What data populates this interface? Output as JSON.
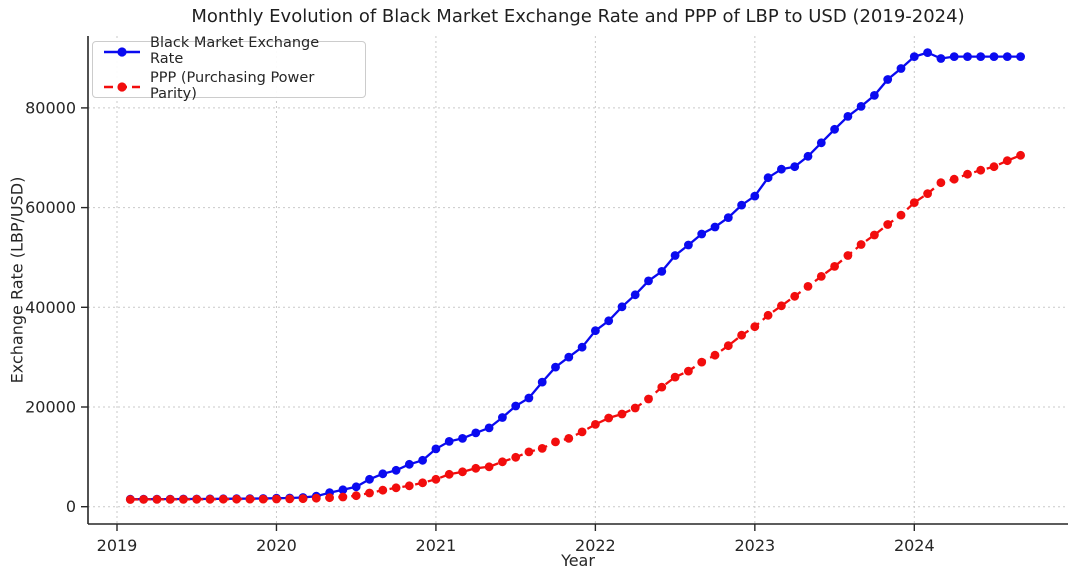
{
  "chart_data": {
    "type": "line",
    "title": "Monthly Evolution of Black Market Exchange Rate and PPP of LBP to USD (2019-2024)",
    "xlabel": "Year",
    "ylabel": "Exchange Rate (LBP/USD)",
    "x_tick_labels": [
      "2019",
      "2020",
      "2021",
      "2022",
      "2023",
      "2024"
    ],
    "y_tick_labels": [
      "0",
      "20000",
      "40000",
      "60000",
      "80000"
    ],
    "ylim": [
      -3400,
      95000
    ],
    "xlim_years": [
      2018.82,
      2024.96
    ],
    "grid": "dashed light-gray, horizontal and vertical",
    "legend_position": "upper left",
    "frequency": "monthly",
    "x": [
      "2019-01",
      "2019-02",
      "2019-03",
      "2019-04",
      "2019-05",
      "2019-06",
      "2019-07",
      "2019-08",
      "2019-09",
      "2019-10",
      "2019-11",
      "2019-12",
      "2020-01",
      "2020-02",
      "2020-03",
      "2020-04",
      "2020-05",
      "2020-06",
      "2020-07",
      "2020-08",
      "2020-09",
      "2020-10",
      "2020-11",
      "2020-12",
      "2021-01",
      "2021-02",
      "2021-03",
      "2021-04",
      "2021-05",
      "2021-06",
      "2021-07",
      "2021-08",
      "2021-09",
      "2021-10",
      "2021-11",
      "2021-12",
      "2022-01",
      "2022-02",
      "2022-03",
      "2022-04",
      "2022-05",
      "2022-06",
      "2022-07",
      "2022-08",
      "2022-09",
      "2022-10",
      "2022-11",
      "2022-12",
      "2023-01",
      "2023-02",
      "2023-03",
      "2023-04",
      "2023-05",
      "2023-06",
      "2023-07",
      "2023-08",
      "2023-09",
      "2023-10",
      "2023-11",
      "2023-12",
      "2024-01",
      "2024-02",
      "2024-03",
      "2024-04",
      "2024-05",
      "2024-06",
      "2024-07",
      "2024-08"
    ],
    "series": [
      {
        "name": "Black Market Exchange Rate",
        "color": "#0a0af0",
        "style": "solid",
        "marker": "circle",
        "values": [
          1500,
          1510,
          1520,
          1530,
          1540,
          1550,
          1560,
          1580,
          1600,
          1620,
          1650,
          1700,
          1750,
          1850,
          2100,
          2800,
          3400,
          4000,
          5500,
          6600,
          7300,
          8500,
          9300,
          11600,
          13100,
          13700,
          14800,
          15800,
          17900,
          20200,
          21800,
          25000,
          28000,
          30000,
          32000,
          35300,
          37300,
          40100,
          42500,
          45300,
          47200,
          50400,
          52500,
          54700,
          56100,
          58000,
          60500,
          62300,
          66000,
          67700,
          68200,
          70300,
          73000,
          75700,
          78300,
          80300,
          82500,
          85700,
          87900,
          90300,
          91100,
          89900,
          90300,
          90300,
          90300,
          90300,
          90300,
          90300
        ]
      },
      {
        "name": "PPP (Purchasing Power Parity)",
        "color": "#f20d0d",
        "style": "dashed",
        "marker": "circle",
        "values": [
          1450,
          1455,
          1460,
          1465,
          1470,
          1480,
          1490,
          1500,
          1510,
          1520,
          1530,
          1540,
          1560,
          1600,
          1700,
          1800,
          1950,
          2200,
          2750,
          3300,
          3800,
          4200,
          4800,
          5500,
          6500,
          7000,
          7700,
          8000,
          9000,
          9900,
          11000,
          11700,
          13000,
          13700,
          15000,
          16500,
          17800,
          18600,
          19800,
          21600,
          24000,
          26000,
          27200,
          29000,
          30400,
          32300,
          34400,
          36100,
          38400,
          40300,
          42200,
          44200,
          46200,
          48200,
          50400,
          52600,
          54500,
          56600,
          58500,
          61000,
          62800,
          65000,
          65700,
          66700,
          67500,
          68200,
          69400,
          70500
        ]
      }
    ]
  }
}
